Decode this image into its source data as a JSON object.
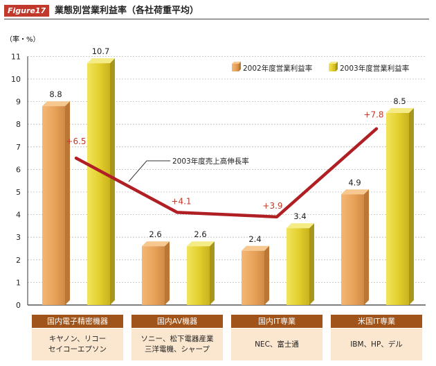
{
  "figure": {
    "tag": "Figure17",
    "title": "業態別営業利益率（各社荷重平均）"
  },
  "chart_data": {
    "type": "bar",
    "unit_label": "（率・%）",
    "ylim": [
      0,
      11
    ],
    "yticks": [
      "0",
      "1",
      "2",
      "3",
      "4",
      "5",
      "6",
      "7",
      "8",
      "9",
      "10",
      "11"
    ],
    "categories": [
      "国内電子精密機器",
      "国内AV機器",
      "国内IT専業",
      "米国IT専業"
    ],
    "category_companies": [
      "キヤノン、リコー\nセイコーエプソン",
      "ソニー、松下電器産業\n三洋電機、シャープ",
      "NEC、富士通",
      "IBM、HP、デル"
    ],
    "series": [
      {
        "name": "2002年度営業利益率",
        "values": [
          8.8,
          2.6,
          2.4,
          4.9
        ],
        "labels": [
          "8.8",
          "2.6",
          "2.4",
          "4.9"
        ],
        "color": "#e0a060"
      },
      {
        "name": "2003年度営業利益率",
        "values": [
          10.7,
          2.6,
          3.4,
          8.5
        ],
        "labels": [
          "10.7",
          "2.6",
          "3.4",
          "8.5"
        ],
        "color": "#e6d23a"
      }
    ],
    "line": {
      "name": "2003年度売上高伸長率",
      "values": [
        6.5,
        4.1,
        3.9,
        7.8
      ],
      "labels": [
        "+6.5",
        "+4.1",
        "+3.9",
        "+7.8"
      ],
      "color": "#b01f24"
    }
  }
}
